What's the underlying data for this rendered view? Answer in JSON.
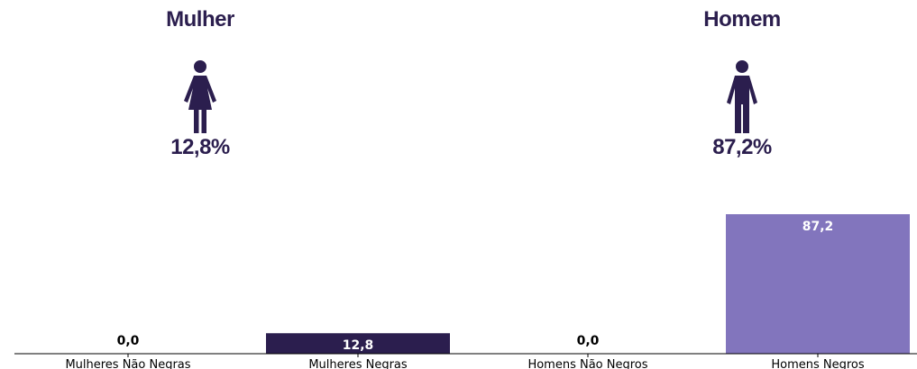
{
  "header": {
    "female": {
      "title": "Mulher",
      "percent": "12,8%",
      "icon": "woman-icon"
    },
    "male": {
      "title": "Homem",
      "percent": "87,2%",
      "icon": "man-icon"
    }
  },
  "colors": {
    "dark": "#2b1e4e",
    "light": "#8275bd",
    "title": "#2b1e4e"
  },
  "chart_data": {
    "type": "bar",
    "categories": [
      "Mulheres Não Negras",
      "Mulheres Negras",
      "Homens Não Negros",
      "Homens Negros"
    ],
    "values": [
      0.0,
      12.8,
      0.0,
      87.2
    ],
    "value_labels": [
      "0,0",
      "12,8",
      "0,0",
      "87,2"
    ],
    "bar_colors": [
      "#2b1e4e",
      "#2b1e4e",
      "#8275bd",
      "#8275bd"
    ],
    "title": "",
    "xlabel": "",
    "ylabel": "",
    "ylim": [
      0,
      87.2
    ],
    "grid": false,
    "legend": "none"
  }
}
